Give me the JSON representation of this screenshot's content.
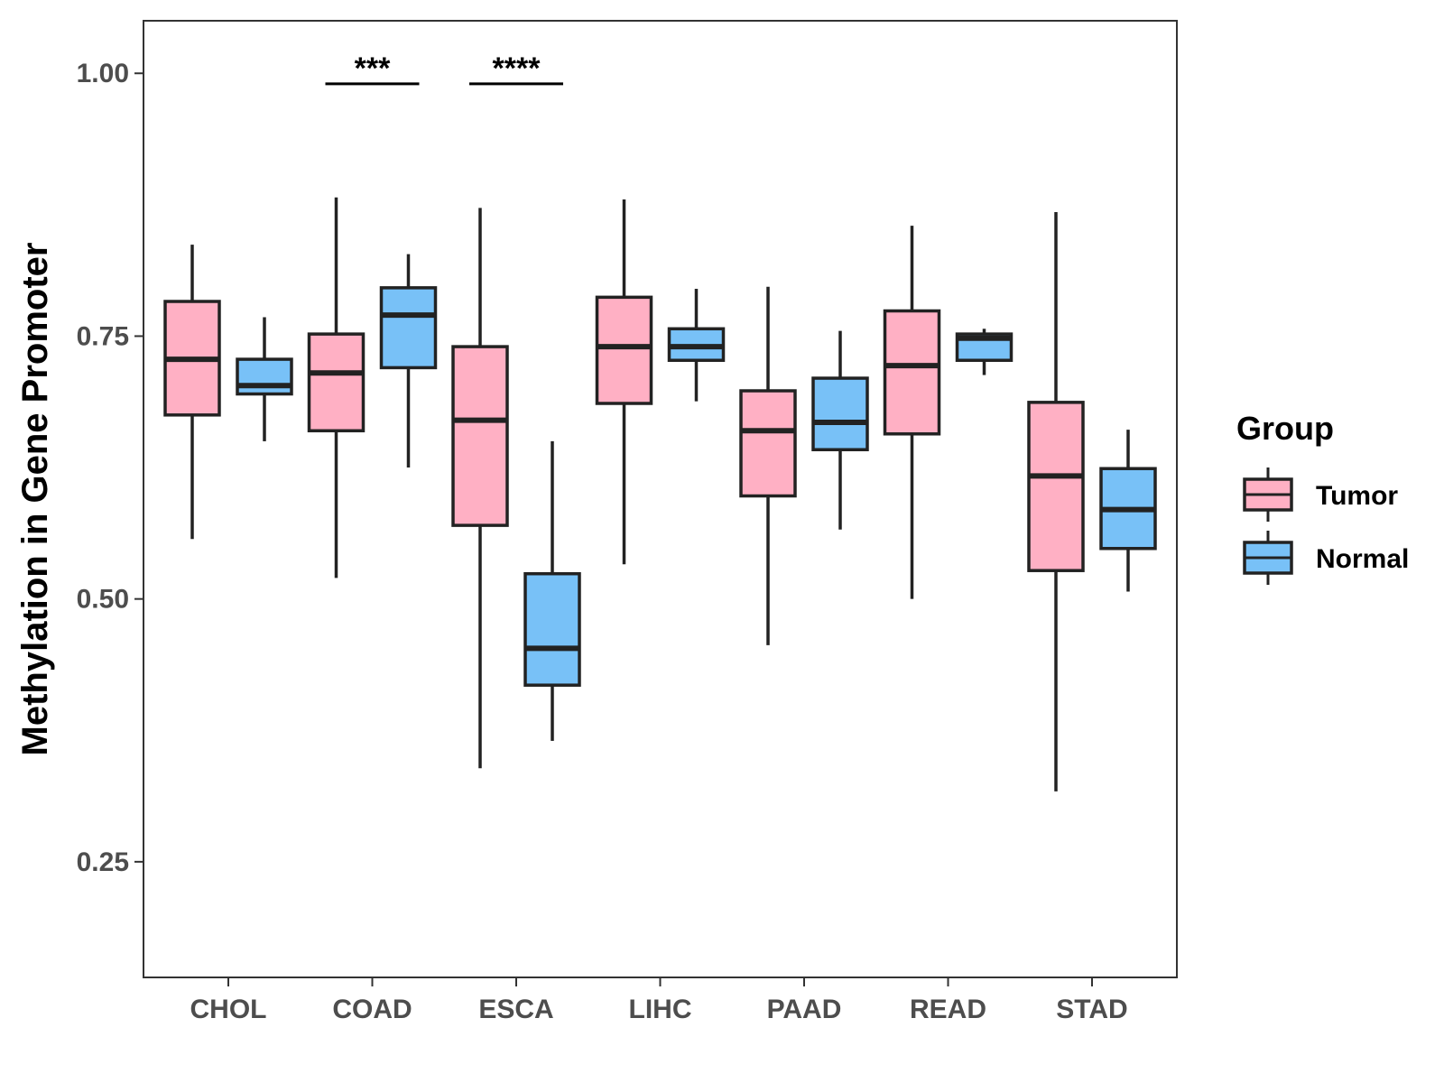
{
  "chart_data": {
    "type": "boxplot",
    "ylabel": "Methylation in Gene Promoter",
    "xlabel": "",
    "ylim": [
      0.14,
      1.05
    ],
    "y_ticks": [
      0.25,
      0.5,
      0.75,
      1.0
    ],
    "y_tick_labels": [
      "0.25",
      "0.50",
      "0.75",
      "1.00"
    ],
    "categories": [
      "CHOL",
      "COAD",
      "ESCA",
      "LIHC",
      "PAAD",
      "READ",
      "STAD"
    ],
    "legend": {
      "title": "Group",
      "position": "right",
      "entries": [
        {
          "name": "Tumor",
          "color": "#FFB0C4"
        },
        {
          "name": "Normal",
          "color": "#78C1F7"
        }
      ]
    },
    "series": [
      {
        "name": "Tumor",
        "color": "#FFB0C4",
        "boxes": [
          {
            "category": "CHOL",
            "min": 0.557,
            "q1": 0.675,
            "median": 0.728,
            "q3": 0.783,
            "max": 0.837
          },
          {
            "category": "COAD",
            "min": 0.52,
            "q1": 0.66,
            "median": 0.715,
            "q3": 0.752,
            "max": 0.882
          },
          {
            "category": "ESCA",
            "min": 0.339,
            "q1": 0.57,
            "median": 0.67,
            "q3": 0.74,
            "max": 0.872
          },
          {
            "category": "LIHC",
            "min": 0.533,
            "q1": 0.686,
            "median": 0.74,
            "q3": 0.787,
            "max": 0.88
          },
          {
            "category": "PAAD",
            "min": 0.456,
            "q1": 0.598,
            "median": 0.66,
            "q3": 0.698,
            "max": 0.797
          },
          {
            "category": "READ",
            "min": 0.5,
            "q1": 0.657,
            "median": 0.722,
            "q3": 0.774,
            "max": 0.855
          },
          {
            "category": "STAD",
            "min": 0.317,
            "q1": 0.527,
            "median": 0.617,
            "q3": 0.687,
            "max": 0.868
          }
        ]
      },
      {
        "name": "Normal",
        "color": "#78C1F7",
        "boxes": [
          {
            "category": "CHOL",
            "min": 0.65,
            "q1": 0.695,
            "median": 0.703,
            "q3": 0.728,
            "max": 0.768
          },
          {
            "category": "COAD",
            "min": 0.625,
            "q1": 0.72,
            "median": 0.77,
            "q3": 0.796,
            "max": 0.828
          },
          {
            "category": "ESCA",
            "min": 0.365,
            "q1": 0.418,
            "median": 0.453,
            "q3": 0.524,
            "max": 0.65
          },
          {
            "category": "LIHC",
            "min": 0.688,
            "q1": 0.727,
            "median": 0.74,
            "q3": 0.757,
            "max": 0.795
          },
          {
            "category": "PAAD",
            "min": 0.566,
            "q1": 0.642,
            "median": 0.668,
            "q3": 0.71,
            "max": 0.755
          },
          {
            "category": "READ",
            "min": 0.713,
            "q1": 0.727,
            "median": 0.748,
            "q3": 0.752,
            "max": 0.757
          },
          {
            "category": "STAD",
            "min": 0.507,
            "q1": 0.548,
            "median": 0.585,
            "q3": 0.624,
            "max": 0.661
          }
        ]
      }
    ],
    "annotations": [
      {
        "category": "COAD",
        "label": "***",
        "y": 0.99
      },
      {
        "category": "ESCA",
        "label": "****",
        "y": 0.99
      }
    ]
  }
}
